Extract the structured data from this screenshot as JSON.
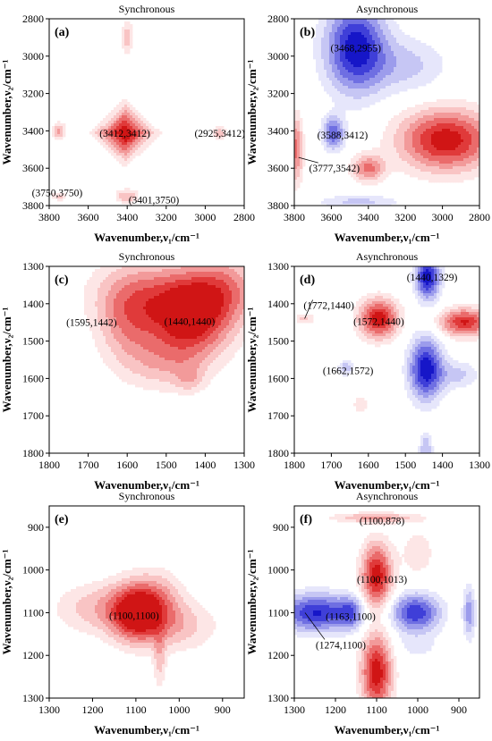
{
  "chart_data": [
    {
      "panel": "(a)",
      "title": "Synchronous",
      "type": "heatmap",
      "xlabel": "Wavenumber,ν₁/cm⁻¹",
      "ylabel": "Wavenumber,ν₂/cm⁻¹",
      "xlim": [
        3800,
        2800
      ],
      "ylim": [
        2800,
        3800
      ],
      "xticks": [
        3800,
        3600,
        3400,
        3200,
        3000,
        2800
      ],
      "yticks": [
        2800,
        3000,
        3200,
        3400,
        3600,
        3800
      ],
      "peaks": [
        {
          "x": 3412,
          "y": 3412,
          "sign": 1,
          "amp": 1.0,
          "sx": 70,
          "sy": 70,
          "shape": "diamond"
        },
        {
          "x": 3400,
          "y": 2900,
          "sign": 1,
          "amp": 0.35,
          "sx": 20,
          "sy": 60
        },
        {
          "x": 3750,
          "y": 3400,
          "sign": 1,
          "amp": 0.45,
          "sx": 22,
          "sy": 30
        },
        {
          "x": 2925,
          "y": 3412,
          "sign": 1,
          "amp": 0.35,
          "sx": 25,
          "sy": 25
        },
        {
          "x": 3750,
          "y": 3750,
          "sign": 1,
          "amp": 0.3,
          "sx": 25,
          "sy": 15
        },
        {
          "x": 3401,
          "y": 3750,
          "sign": 1,
          "amp": 0.4,
          "sx": 40,
          "sy": 25
        }
      ],
      "annotations": [
        {
          "text": "(3412,3412)",
          "x": 3412,
          "y": 3412
        },
        {
          "text": "(2925,3412)",
          "x": 2925,
          "y": 3412
        },
        {
          "text": "(3750,3750)",
          "x": 3750,
          "y": 3750
        },
        {
          "text": "(3401,3750)",
          "x": 3401,
          "y": 3750
        }
      ]
    },
    {
      "panel": "(b)",
      "title": "Asynchronous",
      "type": "heatmap",
      "xlabel": "Wavenumber,ν₁/cm⁻¹",
      "ylabel": "Wavenumber,ν₂/cm⁻¹",
      "xlim": [
        3800,
        2800
      ],
      "ylim": [
        2800,
        3800
      ],
      "xticks": [
        3800,
        3600,
        3400,
        3200,
        3000,
        2800
      ],
      "yticks": [
        2800,
        3000,
        3200,
        3400,
        3600,
        3800
      ],
      "peaks": [
        {
          "x": 3468,
          "y": 2955,
          "sign": -1,
          "amp": 1.0,
          "sx": 110,
          "sy": 160
        },
        {
          "x": 3588,
          "y": 3412,
          "sign": -1,
          "amp": 0.7,
          "sx": 40,
          "sy": 60
        },
        {
          "x": 3200,
          "y": 3050,
          "sign": -1,
          "amp": 0.3,
          "sx": 150,
          "sy": 100
        },
        {
          "x": 3450,
          "y": 3780,
          "sign": -1,
          "amp": 0.3,
          "sx": 150,
          "sy": 25
        },
        {
          "x": 2980,
          "y": 3450,
          "sign": 1,
          "amp": 1.0,
          "sx": 170,
          "sy": 110
        },
        {
          "x": 3400,
          "y": 3600,
          "sign": 1,
          "amp": 0.6,
          "sx": 60,
          "sy": 50
        },
        {
          "x": 3790,
          "y": 3500,
          "sign": 1,
          "amp": 0.6,
          "sx": 25,
          "sy": 120
        }
      ],
      "annotations": [
        {
          "text": "(3468,2955)",
          "x": 3468,
          "y": 2955
        },
        {
          "text": "(3588,3412)",
          "x": 3588,
          "y": 3412
        },
        {
          "text": "(3777,3542)",
          "x": 3777,
          "y": 3542
        }
      ]
    },
    {
      "panel": "(c)",
      "title": "Synchronous",
      "type": "heatmap",
      "xlabel": "Wavenumber,ν₁/cm⁻¹",
      "ylabel": "Wavenumber,ν₂/cm⁻¹",
      "xlim": [
        1800,
        1300
      ],
      "ylim": [
        1300,
        1800
      ],
      "xticks": [
        1800,
        1700,
        1600,
        1500,
        1400,
        1300
      ],
      "yticks": [
        1300,
        1400,
        1500,
        1600,
        1700,
        1800
      ],
      "peaks": [
        {
          "x": 1440,
          "y": 1440,
          "sign": 1,
          "amp": 1.0,
          "sx": 70,
          "sy": 70
        },
        {
          "x": 1595,
          "y": 1442,
          "sign": 1,
          "amp": 0.5,
          "sx": 55,
          "sy": 80
        },
        {
          "x": 1500,
          "y": 1370,
          "sign": 1,
          "amp": 0.4,
          "sx": 120,
          "sy": 60
        },
        {
          "x": 1350,
          "y": 1360,
          "sign": 1,
          "amp": 0.4,
          "sx": 60,
          "sy": 60
        },
        {
          "x": 1500,
          "y": 1560,
          "sign": 1,
          "amp": 0.3,
          "sx": 70,
          "sy": 50
        },
        {
          "x": 1440,
          "y": 1600,
          "sign": 1,
          "amp": 0.25,
          "sx": 25,
          "sy": 25
        }
      ],
      "annotations": [
        {
          "text": "(1595,1442)",
          "x": 1595,
          "y": 1442
        },
        {
          "text": "(1440,1440)",
          "x": 1440,
          "y": 1440
        }
      ]
    },
    {
      "panel": "(d)",
      "title": "Asynchronous",
      "type": "heatmap",
      "xlabel": "Wavenumber,ν₁/cm⁻¹",
      "ylabel": "Wavenumber,ν₂/cm⁻¹",
      "xlim": [
        1800,
        1300
      ],
      "ylim": [
        1300,
        1800
      ],
      "xticks": [
        1800,
        1700,
        1600,
        1500,
        1400,
        1300
      ],
      "yticks": [
        1300,
        1400,
        1500,
        1600,
        1700,
        1800
      ],
      "peaks": [
        {
          "x": 1440,
          "y": 1329,
          "sign": -1,
          "amp": 1.0,
          "sx": 22,
          "sy": 40
        },
        {
          "x": 1445,
          "y": 1575,
          "sign": -1,
          "amp": 1.0,
          "sx": 30,
          "sy": 55
        },
        {
          "x": 1362,
          "y": 1590,
          "sign": -1,
          "amp": 0.3,
          "sx": 40,
          "sy": 25
        },
        {
          "x": 1662,
          "y": 1572,
          "sign": -1,
          "amp": 0.35,
          "sx": 14,
          "sy": 14
        },
        {
          "x": 1445,
          "y": 1790,
          "sign": -1,
          "amp": 0.4,
          "sx": 12,
          "sy": 30
        },
        {
          "x": 1572,
          "y": 1440,
          "sign": 1,
          "amp": 1.0,
          "sx": 35,
          "sy": 35
        },
        {
          "x": 1340,
          "y": 1450,
          "sign": 1,
          "amp": 0.9,
          "sx": 45,
          "sy": 25
        },
        {
          "x": 1772,
          "y": 1440,
          "sign": 1,
          "amp": 0.3,
          "sx": 18,
          "sy": 10
        },
        {
          "x": 1620,
          "y": 1670,
          "sign": 1,
          "amp": 0.25,
          "sx": 15,
          "sy": 15
        }
      ],
      "annotations": [
        {
          "text": "(1440,1329)",
          "x": 1440,
          "y": 1329
        },
        {
          "text": "(1772,1440)",
          "x": 1772,
          "y": 1440
        },
        {
          "text": "(1572,1440)",
          "x": 1572,
          "y": 1440
        },
        {
          "text": "(1662,1572)",
          "x": 1662,
          "y": 1572
        }
      ]
    },
    {
      "panel": "(e)",
      "title": "Synchronous",
      "type": "heatmap",
      "xlabel": "Wavenumber,ν₁/cm⁻¹",
      "ylabel": "Wavenumber,ν₂/cm⁻¹",
      "xlim": [
        1300,
        850
      ],
      "ylim": [
        850,
        1300
      ],
      "xticks": [
        1300,
        1200,
        1100,
        1000,
        900
      ],
      "yticks": [
        900,
        1000,
        1100,
        1200,
        1300
      ],
      "peaks": [
        {
          "x": 1100,
          "y": 1100,
          "sign": 1,
          "amp": 1.0,
          "sx": 40,
          "sy": 45
        },
        {
          "x": 1050,
          "y": 1080,
          "sign": 1,
          "amp": 0.4,
          "sx": 40,
          "sy": 50
        },
        {
          "x": 1180,
          "y": 1090,
          "sign": 1,
          "amp": 0.35,
          "sx": 70,
          "sy": 40
        },
        {
          "x": 1045,
          "y": 1210,
          "sign": 1,
          "amp": 0.3,
          "sx": 10,
          "sy": 45
        },
        {
          "x": 1000,
          "y": 1130,
          "sign": 1,
          "amp": 0.3,
          "sx": 60,
          "sy": 40
        }
      ],
      "annotations": [
        {
          "text": "(1100,1100)",
          "x": 1100,
          "y": 1100
        }
      ]
    },
    {
      "panel": "(f)",
      "title": "Asynchronous",
      "type": "heatmap",
      "xlabel": "Wavenumber,ν₁/cm⁻¹",
      "ylabel": "Wavenumber,ν₂/cm⁻¹",
      "xlim": [
        1300,
        850
      ],
      "ylim": [
        850,
        1300
      ],
      "xticks": [
        1300,
        1200,
        1100,
        1000,
        900
      ],
      "yticks": [
        900,
        1000,
        1100,
        1200,
        1300
      ],
      "peaks": [
        {
          "x": 1100,
          "y": 878,
          "sign": 1,
          "amp": 0.45,
          "sx": 70,
          "sy": 8
        },
        {
          "x": 1100,
          "y": 1013,
          "sign": 1,
          "amp": 1.0,
          "sx": 25,
          "sy": 50
        },
        {
          "x": 1100,
          "y": 1240,
          "sign": 1,
          "amp": 1.0,
          "sx": 25,
          "sy": 60
        },
        {
          "x": 1000,
          "y": 960,
          "sign": 1,
          "amp": 0.2,
          "sx": 30,
          "sy": 40
        },
        {
          "x": 1245,
          "y": 1100,
          "sign": -1,
          "amp": 0.9,
          "sx": 60,
          "sy": 30
        },
        {
          "x": 1163,
          "y": 1100,
          "sign": -1,
          "amp": 0.5,
          "sx": 20,
          "sy": 25
        },
        {
          "x": 1005,
          "y": 1100,
          "sign": -1,
          "amp": 0.85,
          "sx": 40,
          "sy": 30
        },
        {
          "x": 875,
          "y": 1100,
          "sign": -1,
          "amp": 0.5,
          "sx": 10,
          "sy": 40
        },
        {
          "x": 1000,
          "y": 1180,
          "sign": -1,
          "amp": 0.15,
          "sx": 40,
          "sy": 25
        }
      ],
      "annotations": [
        {
          "text": "(1100,878)",
          "x": 1100,
          "y": 878
        },
        {
          "text": "(1100,1013)",
          "x": 1100,
          "y": 1013
        },
        {
          "text": "(1163,1100)",
          "x": 1163,
          "y": 1100
        },
        {
          "text": "(1274,1100)",
          "x": 1274,
          "y": 1100
        }
      ]
    }
  ],
  "colors": {
    "red_levels": [
      "#fde6e6",
      "#f9c4c4",
      "#f29a9a",
      "#ea6b6b",
      "#e03a3a",
      "#d01515"
    ],
    "blue_levels": [
      "#e6e6fb",
      "#c6c6f4",
      "#9c9cec",
      "#6f6fe2",
      "#3f3fd8",
      "#1616c8"
    ]
  }
}
